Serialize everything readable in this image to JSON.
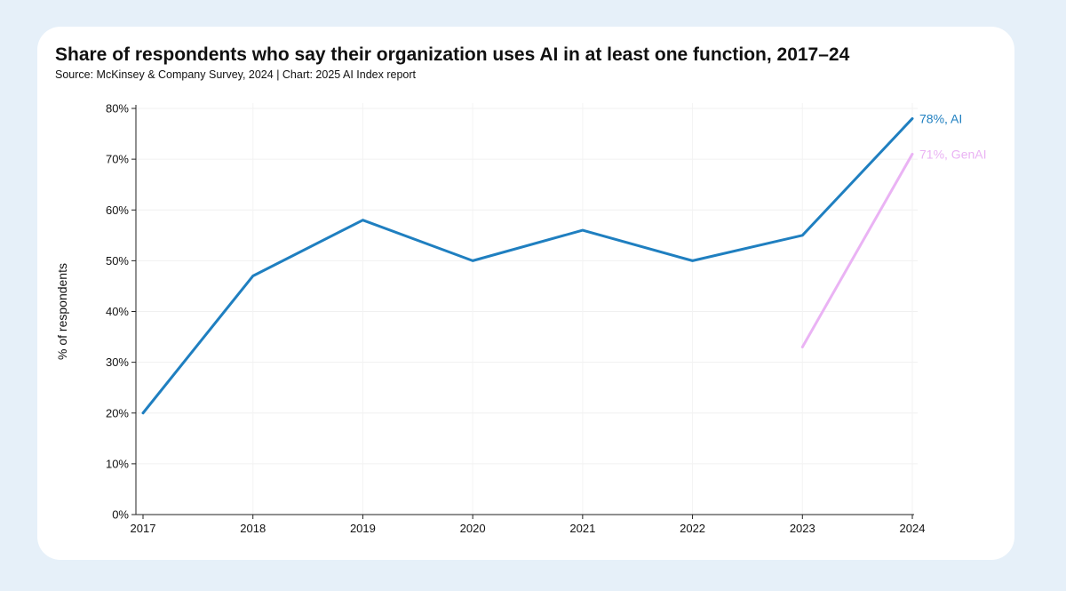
{
  "card": {
    "title": "Share of respondents who say their organization uses AI in at least one function, 2017–24",
    "subtitle": "Source: McKinsey & Company Survey, 2024 | Chart: 2025 AI Index report"
  },
  "chart_data": {
    "type": "line",
    "title": "Share of respondents who say their organization uses AI in at least one function, 2017–24",
    "subtitle": "Source: McKinsey & Company Survey, 2024 | Chart: 2025 AI Index report",
    "xlabel": "",
    "ylabel": "% of respondents",
    "x": [
      "2017",
      "2018",
      "2019",
      "2020",
      "2021",
      "2022",
      "2023",
      "2024"
    ],
    "ylim": [
      0,
      80
    ],
    "yticks": [
      0,
      10,
      20,
      30,
      40,
      50,
      60,
      70,
      80
    ],
    "ytick_labels": [
      "0%",
      "10%",
      "20%",
      "30%",
      "40%",
      "50%",
      "60%",
      "70%",
      "80%"
    ],
    "grid": true,
    "series": [
      {
        "name": "AI",
        "color": "#1f7fc0",
        "x": [
          "2017",
          "2018",
          "2019",
          "2020",
          "2021",
          "2022",
          "2023",
          "2024"
        ],
        "values": [
          20,
          47,
          58,
          50,
          56,
          50,
          55,
          78
        ],
        "end_label": "78%, AI"
      },
      {
        "name": "GenAI",
        "color": "#eab3f4",
        "x": [
          "2023",
          "2024"
        ],
        "values": [
          33,
          71
        ],
        "end_label": "71%, GenAI"
      }
    ]
  }
}
